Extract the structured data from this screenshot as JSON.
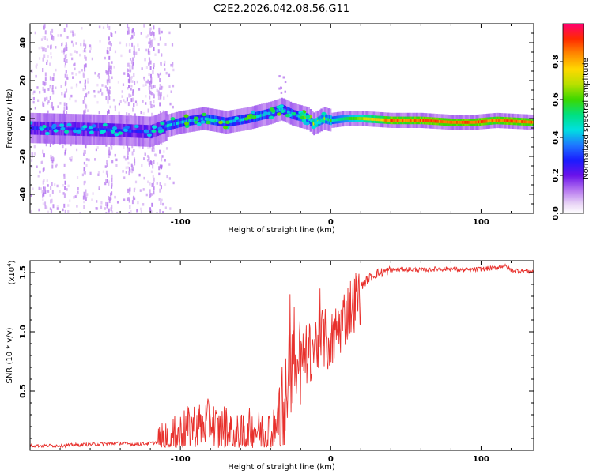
{
  "chart_data": [
    {
      "type": "heatmap",
      "title": "C2E2.2026.042.08.56.G11",
      "xlabel": "Height of straight line (km)",
      "ylabel": "Frequency (Hz)",
      "xlim": [
        -200,
        135
      ],
      "ylim": [
        -50,
        50
      ],
      "x_ticks": [
        -100,
        0,
        100
      ],
      "y_ticks": [
        -40,
        -20,
        0,
        20,
        40
      ],
      "ridge": [
        {
          "x": -200,
          "y": -5
        },
        {
          "x": -150,
          "y": -6
        },
        {
          "x": -120,
          "y": -7
        },
        {
          "x": -110,
          "y": -4
        },
        {
          "x": -100,
          "y": -2
        },
        {
          "x": -85,
          "y": 0
        },
        {
          "x": -70,
          "y": -2
        },
        {
          "x": -55,
          "y": 0
        },
        {
          "x": -40,
          "y": 3
        },
        {
          "x": -33,
          "y": 5
        },
        {
          "x": -25,
          "y": 2
        },
        {
          "x": -15,
          "y": 0
        },
        {
          "x": -12,
          "y": -3
        },
        {
          "x": -5,
          "y": 0
        },
        {
          "x": 0,
          "y": -1
        },
        {
          "x": 10,
          "y": 0
        },
        {
          "x": 20,
          "y": 0
        },
        {
          "x": 40,
          "y": -1
        },
        {
          "x": 60,
          "y": -1
        },
        {
          "x": 80,
          "y": -2
        },
        {
          "x": 95,
          "y": -2
        },
        {
          "x": 110,
          "y": -1
        },
        {
          "x": 135,
          "y": -2
        }
      ],
      "colorbar": {
        "label": "Normalized spectral amplitude",
        "range": [
          0,
          1
        ],
        "ticks": [
          "0.0",
          "0.2",
          "0.4",
          "0.6",
          "0.8"
        ]
      }
    },
    {
      "type": "line",
      "title": "",
      "xlabel": "Height of straight line (km)",
      "ylabel": "SNR (10 * v/v)",
      "exponent_label": "(x10",
      "exponent_sup": "4",
      "exponent_close": ")",
      "xlim": [
        -200,
        135
      ],
      "ylim": [
        0,
        1.6
      ],
      "x_ticks": [
        -100,
        0,
        100
      ],
      "y_ticks": [
        "0.5",
        "1.0",
        "1.5"
      ],
      "color": "#e8302c",
      "series": [
        {
          "name": "SNR",
          "x": [
            -200,
            -180,
            -160,
            -140,
            -130,
            -120,
            -110,
            -105,
            -100,
            -95,
            -90,
            -85,
            -80,
            -75,
            -70,
            -65,
            -60,
            -55,
            -50,
            -45,
            -40,
            -35,
            -32,
            -30,
            -28,
            -25,
            -20,
            -15,
            -10,
            -5,
            0,
            5,
            10,
            15,
            20,
            25,
            30,
            40,
            50,
            60,
            70,
            80,
            90,
            100,
            110,
            115,
            120,
            135
          ],
          "y": [
            0.04,
            0.04,
            0.05,
            0.06,
            0.05,
            0.06,
            0.08,
            0.12,
            0.18,
            0.22,
            0.26,
            0.24,
            0.3,
            0.2,
            0.24,
            0.16,
            0.14,
            0.2,
            0.22,
            0.18,
            0.2,
            0.22,
            0.35,
            0.6,
            0.72,
            0.78,
            0.82,
            0.86,
            0.95,
            1.0,
            0.95,
            1.08,
            1.2,
            1.3,
            1.38,
            1.45,
            1.49,
            1.52,
            1.53,
            1.52,
            1.53,
            1.53,
            1.52,
            1.53,
            1.54,
            1.56,
            1.52,
            1.51
          ]
        }
      ]
    }
  ]
}
